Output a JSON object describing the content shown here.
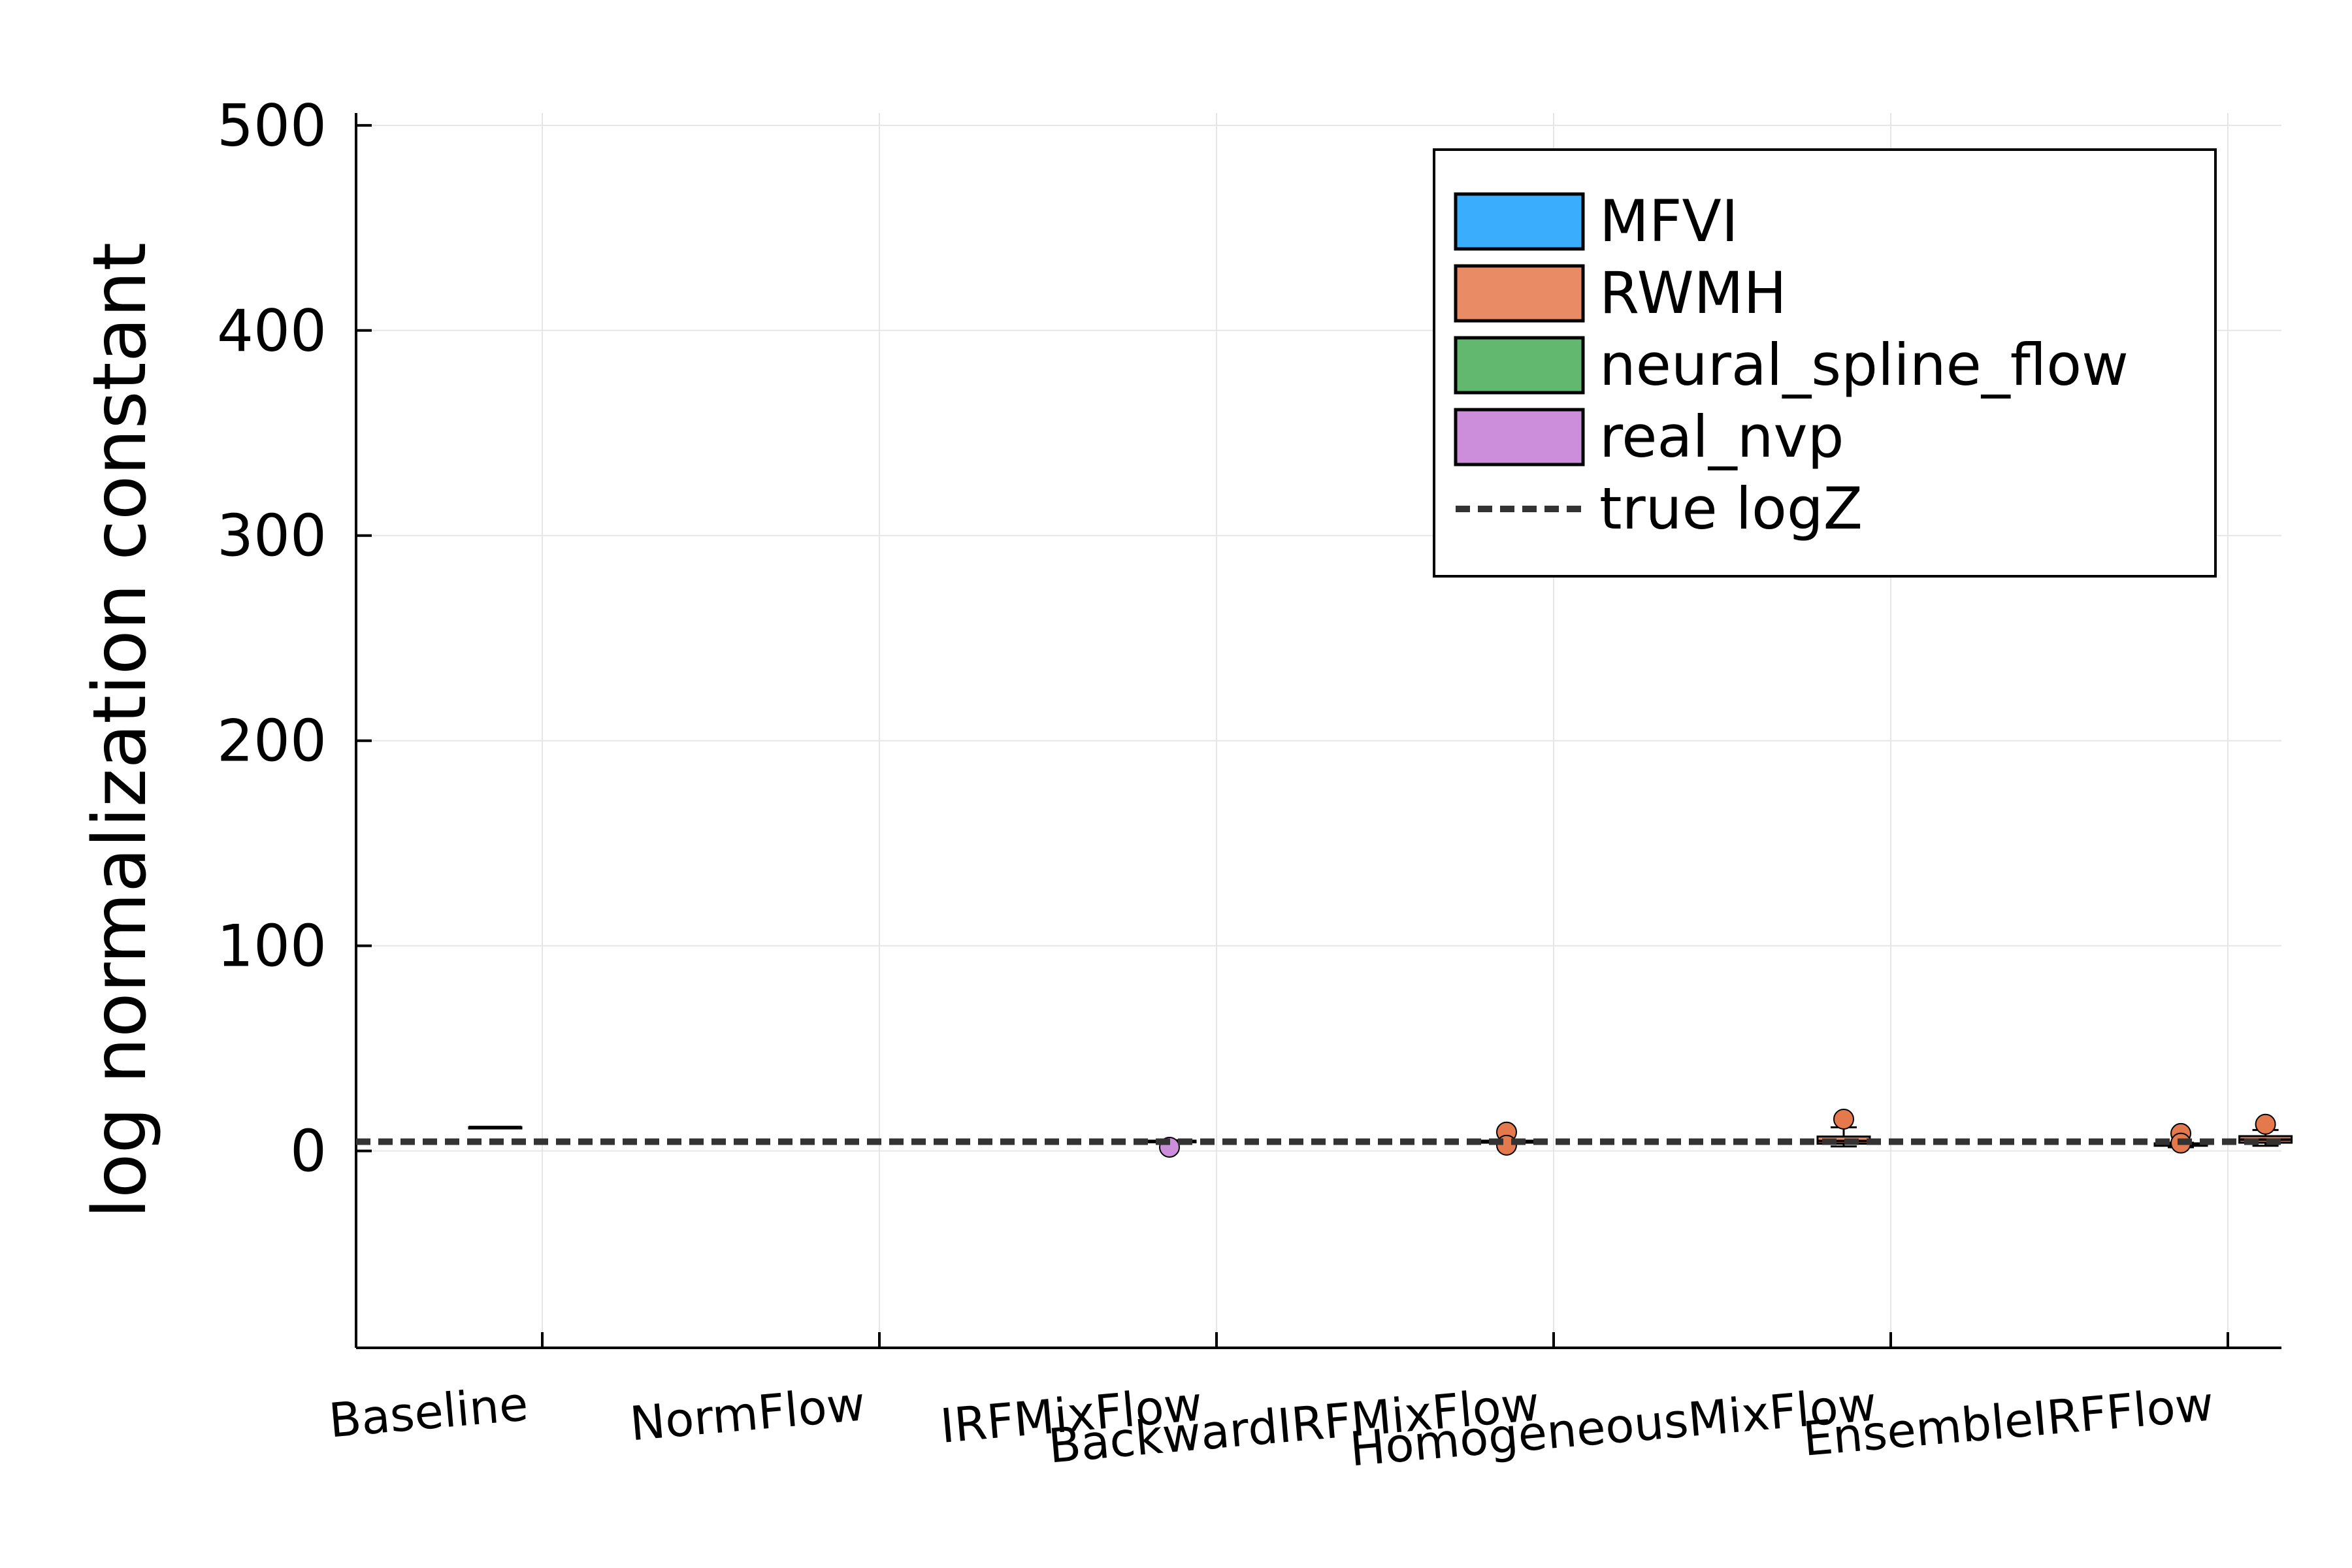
{
  "chart_data": {
    "type": "box",
    "title": "",
    "xlabel": "",
    "ylabel": "log normalization constant",
    "ylim": [
      -96,
      506
    ],
    "yticks": [
      0,
      100,
      200,
      300,
      400,
      500
    ],
    "ytick_labels": [
      "0",
      "100",
      "200",
      "300",
      "400",
      "500"
    ],
    "categories": [
      "Baseline",
      "NormFlow",
      "IRFMixFlow",
      "BackwardIRFMixFlow",
      "HomogeneousMixFlow",
      "EnsembleIRFFlow"
    ],
    "grid": true,
    "legend_position": "top-right",
    "true_logZ": 4.5,
    "series": [
      {
        "name": "MFVI",
        "color": "#3aaefc",
        "boxes": [
          {
            "category": "Baseline",
            "offset": -1,
            "min": 11.6,
            "q1": 11.6,
            "median": 11.6,
            "q3": 11.6,
            "max": 11.6,
            "outliers": []
          }
        ]
      },
      {
        "name": "RWMH",
        "color": "#e98b64",
        "boxes": [
          {
            "category": "BackwardIRFMixFlow",
            "offset": -1,
            "min": 3.6,
            "q1": 4.0,
            "median": 4.5,
            "q3": 5.0,
            "max": 5.4,
            "outliers": [
              9.2,
              2.8
            ]
          },
          {
            "category": "HomogeneousMixFlow",
            "offset": -1,
            "min": 2.2,
            "q1": 3.5,
            "median": 4.8,
            "q3": 7.0,
            "max": 11.5,
            "outliers": [
              15.5
            ]
          },
          {
            "category": "EnsembleIRFFlow",
            "offset": -1,
            "min": 1.8,
            "q1": 2.5,
            "median": 3.0,
            "q3": 3.7,
            "max": 4.0,
            "outliers": [
              8.5,
              3.8
            ]
          },
          {
            "category": "EnsembleIRFFlow",
            "offset": 0.8,
            "min": 2.5,
            "q1": 4.0,
            "median": 5.5,
            "q3": 7.2,
            "max": 10.2,
            "outliers": [
              13.0
            ]
          }
        ]
      },
      {
        "name": "neural_spline_flow",
        "color": "#62b86f",
        "boxes": []
      },
      {
        "name": "real_nvp",
        "color": "#cc8edb",
        "boxes": [
          {
            "category": "IRFMixFlow",
            "offset": -1,
            "min": 3.8,
            "q1": 4.2,
            "median": 4.6,
            "q3": 5.0,
            "max": 5.2,
            "outliers": [
              1.8
            ]
          }
        ]
      }
    ],
    "reference_line": {
      "name": "true logZ",
      "value": 4.5,
      "style": "dashed",
      "color": "#333333"
    }
  }
}
